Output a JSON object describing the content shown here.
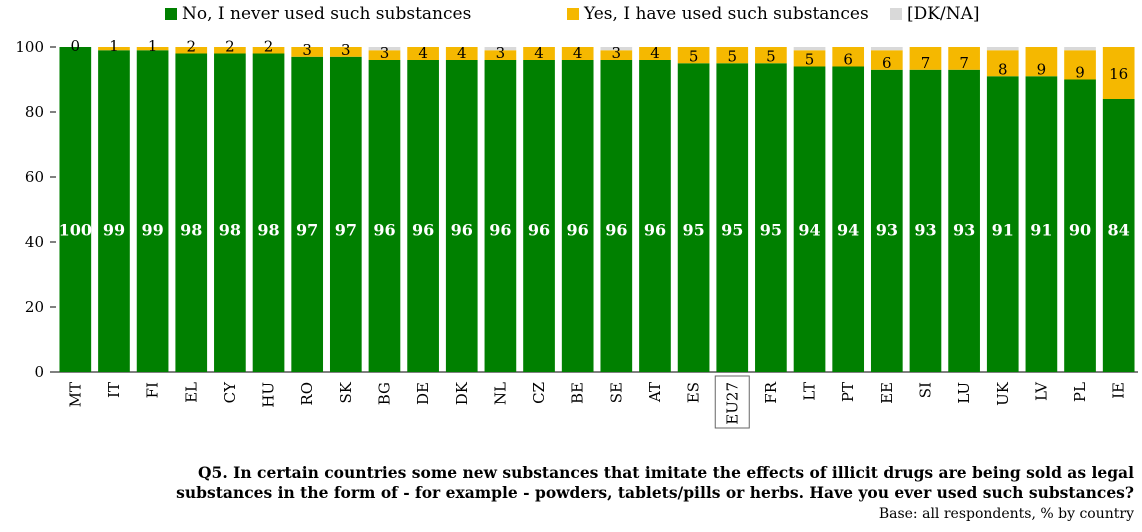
{
  "chart_data": {
    "type": "bar",
    "stacked": true,
    "categories": [
      "MT",
      "IT",
      "FI",
      "EL",
      "CY",
      "HU",
      "RO",
      "SK",
      "BG",
      "DE",
      "DK",
      "NL",
      "CZ",
      "BE",
      "SE",
      "AT",
      "ES",
      "EU27",
      "FR",
      "LT",
      "PT",
      "EE",
      "SI",
      "LU",
      "UK",
      "LV",
      "PL",
      "IE"
    ],
    "highlight_category": "EU27",
    "series": [
      {
        "name": "No, I never used such substances",
        "color": "#008000",
        "values": [
          100,
          99,
          99,
          98,
          98,
          98,
          97,
          97,
          96,
          96,
          96,
          96,
          96,
          96,
          96,
          96,
          95,
          95,
          95,
          94,
          94,
          93,
          93,
          93,
          91,
          91,
          90,
          84
        ]
      },
      {
        "name": "Yes, I have used such substances",
        "color": "#f5b800",
        "values": [
          0,
          1,
          1,
          2,
          2,
          2,
          3,
          3,
          3,
          4,
          4,
          3,
          4,
          4,
          3,
          4,
          5,
          5,
          5,
          5,
          6,
          6,
          7,
          7,
          8,
          9,
          9,
          16
        ]
      },
      {
        "name": "[DK/NA]",
        "color": "#d9d9d9",
        "values": [
          0,
          0,
          0,
          0,
          0,
          0,
          0,
          0,
          1,
          0,
          0,
          1,
          0,
          0,
          1,
          0,
          0,
          0,
          0,
          1,
          0,
          1,
          0,
          0,
          1,
          0,
          1,
          0
        ]
      }
    ],
    "ylim": [
      0,
      100
    ],
    "yticks": [
      0,
      20,
      40,
      60,
      80,
      100
    ],
    "legend_position": "top",
    "grid": false
  },
  "footnote": {
    "question_line1": "Q5. In certain countries some new substances that imitate the effects of illicit drugs are being sold as legal",
    "question_line2": "substances in the form of - for example - powders, tablets/pills or herbs. Have you ever used such substances?",
    "base": "Base: all respondents, % by country"
  }
}
